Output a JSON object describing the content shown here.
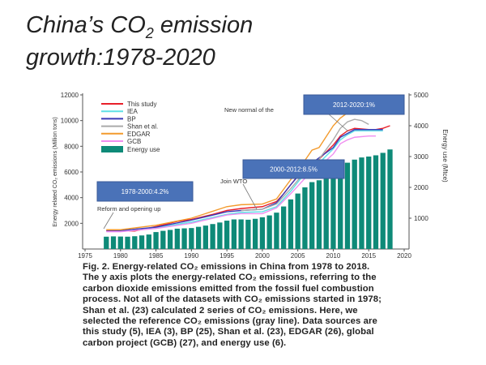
{
  "title": {
    "line1": "China’s CO",
    "sub": "2",
    "line1_end": " emission",
    "line2": "growth:1978-2020"
  },
  "chart_data": {
    "type": "bar+line",
    "xlim": [
      1975,
      2020
    ],
    "x_ticks": [
      "1975",
      "1980",
      "1985",
      "1990",
      "1995",
      "2000",
      "2005",
      "2010",
      "2015",
      "2020"
    ],
    "ylabel": "Energy related CO₂ emissions (Million tons)",
    "ylim": [
      0,
      12000
    ],
    "y_ticks": [
      "2000",
      "4000",
      "6000",
      "8000",
      "10000",
      "12000"
    ],
    "y2label": "Energy use (Mtce)",
    "y2lim": [
      0,
      5000
    ],
    "y2_ticks": [
      "1000",
      "2000",
      "3000",
      "4000",
      "5000"
    ],
    "legend_position": "top-left",
    "bars": {
      "name": "Energy use",
      "color": "#0e8a78",
      "x": [
        1978,
        1979,
        1980,
        1981,
        1982,
        1983,
        1984,
        1985,
        1986,
        1987,
        1988,
        1989,
        1990,
        1991,
        1992,
        1993,
        1994,
        1995,
        1996,
        1997,
        1998,
        1999,
        2000,
        2001,
        2002,
        2003,
        2004,
        2005,
        2006,
        2007,
        2008,
        2009,
        2010,
        2011,
        2012,
        2013,
        2014,
        2015,
        2016,
        2017,
        2018
      ],
      "values": [
        400,
        410,
        405,
        400,
        415,
        440,
        470,
        550,
        590,
        620,
        660,
        670,
        680,
        720,
        760,
        810,
        860,
        920,
        960,
        960,
        950,
        980,
        1030,
        1090,
        1180,
        1380,
        1610,
        1800,
        2000,
        2170,
        2230,
        2400,
        2600,
        2700,
        2800,
        2900,
        2970,
        3000,
        3040,
        3120,
        3230
      ]
    },
    "series": [
      {
        "name": "This study",
        "color": "#e8202a",
        "x": [
          1978,
          1980,
          1982,
          1985,
          1988,
          1990,
          1993,
          1995,
          1997,
          2000,
          2002,
          2003,
          2005,
          2007,
          2008,
          2010,
          2011,
          2012,
          2013,
          2015,
          2016,
          2017,
          2018
        ],
        "y": [
          1400,
          1420,
          1400,
          1750,
          2150,
          2300,
          2700,
          3000,
          3150,
          3300,
          3700,
          4300,
          5700,
          6700,
          7000,
          8100,
          8800,
          9200,
          9400,
          9300,
          9300,
          9400,
          9600
        ]
      },
      {
        "name": "IEA",
        "color": "#5ee0e6",
        "x": [
          1980,
          1985,
          1990,
          1995,
          1997,
          2000,
          2002,
          2004,
          2006,
          2008,
          2010,
          2011,
          2012,
          2013,
          2015,
          2017
        ],
        "y": [
          1380,
          1650,
          2100,
          2700,
          2850,
          2900,
          3300,
          4500,
          5900,
          6700,
          7800,
          8500,
          8900,
          9200,
          9200,
          9200
        ]
      },
      {
        "name": "BP",
        "color": "#3a3ab8",
        "x": [
          1978,
          1980,
          1985,
          1990,
          1995,
          1997,
          2000,
          2002,
          2004,
          2006,
          2008,
          2010,
          2011,
          2012,
          2013,
          2015,
          2017
        ],
        "y": [
          1450,
          1430,
          1700,
          2250,
          2900,
          3000,
          3100,
          3600,
          5000,
          6300,
          7100,
          7900,
          8700,
          9000,
          9300,
          9300,
          9300
        ]
      },
      {
        "name": "Shan et al.",
        "color": "#aaaaaa",
        "x": [
          1997,
          2000,
          2002,
          2004,
          2006,
          2008,
          2010,
          2011,
          2012,
          2013,
          2014,
          2015
        ],
        "y": [
          3000,
          3100,
          3500,
          4700,
          6000,
          7000,
          8500,
          9400,
          9900,
          10100,
          10000,
          9700
        ]
      },
      {
        "name": "EDGAR",
        "color": "#f39a2c",
        "x": [
          1978,
          1980,
          1985,
          1990,
          1995,
          1997,
          2000,
          2002,
          2004,
          2006,
          2007,
          2008,
          2010,
          2011,
          2012,
          2013
        ],
        "y": [
          1500,
          1500,
          1850,
          2400,
          3300,
          3450,
          3500,
          3900,
          5400,
          6900,
          7700,
          7900,
          9600,
          10200,
          10600,
          11200
        ]
      },
      {
        "name": "GCB",
        "color": "#f08ef0",
        "x": [
          1978,
          1980,
          1985,
          1990,
          1995,
          1997,
          2000,
          2002,
          2004,
          2006,
          2008,
          2010,
          2011,
          2012,
          2013,
          2015,
          2016
        ],
        "y": [
          1350,
          1350,
          1600,
          2000,
          2650,
          2750,
          2750,
          3200,
          4300,
          5500,
          6400,
          7400,
          8200,
          8500,
          8700,
          8800,
          8800
        ]
      }
    ],
    "annotations": [
      {
        "box": "1978-2000:4.2%",
        "label": "Reform and opening up"
      },
      {
        "box": "2000-2012:8.5%",
        "label": "Join WTO"
      },
      {
        "box": "2012-2020:1%",
        "label": "New normal of the"
      }
    ]
  },
  "caption": [
    "Fig. 2. Energy-related CO₂ emissions in China from 1978 to 2018.",
    "The y axis plots the energy-related CO₂ emissions, referring to the",
    "carbon dioxide emissions emitted from the fossil fuel combustion",
    "process. Not all of the datasets with CO₂ emissions started in 1978;",
    "Shan et al. (23) calculated 2 series of CO₂ emissions. Here, we",
    "selected the reference CO₂ emissions (gray line). Data sources are",
    "this study (5), IEA (3), BP (25), Shan et al. (23), EDGAR (26), global",
    "carbon project (GCB) (27), and energy use (6)."
  ]
}
